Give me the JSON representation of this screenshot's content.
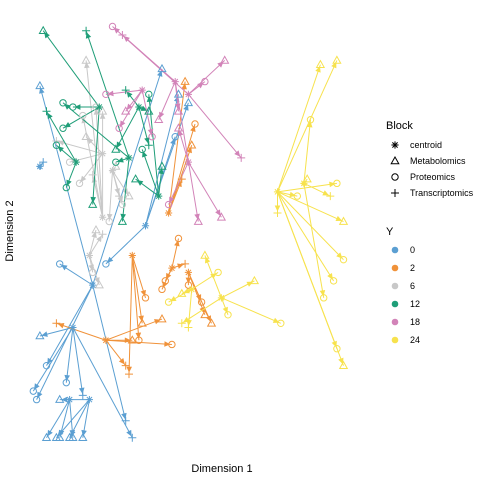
{
  "chart_data": {
    "type": "scatter",
    "xlabel": "Dimension 1",
    "ylabel": "Dimension 2",
    "xlim": [
      0,
      100
    ],
    "ylim": [
      0,
      100
    ],
    "grid": false,
    "legend_block": {
      "title": "Block",
      "entries": [
        {
          "label": "centroid",
          "shape": "asterisk"
        },
        {
          "label": "Metabolomics",
          "shape": "triangle"
        },
        {
          "label": "Proteomics",
          "shape": "circle"
        },
        {
          "label": "Transcriptomics",
          "shape": "plus"
        }
      ]
    },
    "legend_y": {
      "title": "Y",
      "entries": [
        {
          "label": "0",
          "color": "#5b9fd2"
        },
        {
          "label": "2",
          "color": "#f0923a"
        },
        {
          "label": "6",
          "color": "#c8c8c8"
        },
        {
          "label": "12",
          "color": "#1f9e78"
        },
        {
          "label": "18",
          "color": "#d283b8"
        },
        {
          "label": "24",
          "color": "#f7e24d"
        }
      ]
    },
    "series": [
      {
        "name": "0",
        "color": "#5b9fd2",
        "centroids": [
          {
            "c": [
              19,
              37
            ],
            "pts": [
              [
                3,
                84,
                "t"
              ],
              [
                9,
                42,
                "o"
              ],
              [
                40,
                88,
                "t"
              ],
              [
                5,
                18,
                "o"
              ],
              [
                29,
                5,
                "p"
              ],
              [
                2,
                10,
                "o"
              ]
            ]
          },
          {
            "c": [
              35,
              51
            ],
            "pts": [
              [
                44,
                72,
                "o"
              ],
              [
                45,
                82,
                "t"
              ],
              [
                23,
                42,
                "o"
              ],
              [
                48,
                80,
                "t"
              ]
            ]
          },
          {
            "c": [
              13,
              27
            ],
            "pts": [
              [
                1,
                12,
                "o"
              ],
              [
                3,
                25,
                "t"
              ],
              [
                16,
                11,
                "p"
              ],
              [
                11,
                14,
                "o"
              ],
              [
                31,
                1,
                "p"
              ]
            ]
          },
          {
            "c": [
              3,
              65
            ],
            "pts": [
              [
                4,
                66,
                "p"
              ]
            ]
          },
          {
            "c": [
              18,
              10
            ],
            "pts": [
              [
                9,
                10,
                "t"
              ],
              [
                8,
                1,
                "t"
              ],
              [
                12,
                1,
                "t"
              ],
              [
                16,
                1,
                "t"
              ]
            ]
          },
          {
            "c": [
              12,
              10
            ],
            "pts": [
              [
                5,
                1,
                "t"
              ],
              [
                9,
                1,
                "t"
              ],
              [
                13,
                1,
                "t"
              ]
            ]
          }
        ]
      },
      {
        "name": "2",
        "color": "#f0923a",
        "centroids": [
          {
            "c": [
              43,
              41
            ],
            "pts": [
              [
                41,
                38,
                "o"
              ],
              [
                47,
                42,
                "p"
              ],
              [
                45,
                48,
                "o"
              ],
              [
                40,
                36,
                "o"
              ]
            ]
          },
          {
            "c": [
              42,
              54
            ],
            "pts": [
              [
                49,
                70,
                "t"
              ],
              [
                46,
                62,
                "p"
              ],
              [
                47,
                85,
                "t"
              ],
              [
                50,
                75,
                "o"
              ]
            ]
          },
          {
            "c": [
              48,
              40
            ],
            "pts": [
              [
                55,
                28,
                "t"
              ],
              [
                53,
                30,
                "t"
              ],
              [
                48,
                37,
                "o"
              ],
              [
                52,
                33,
                "o"
              ]
            ]
          },
          {
            "c": [
              31,
              44
            ],
            "pts": [
              [
                34,
                28,
                "t"
              ],
              [
                33,
                24,
                "o"
              ],
              [
                30,
                16,
                "p"
              ],
              [
                35,
                34,
                "o"
              ]
            ]
          },
          {
            "c": [
              23,
              24
            ],
            "pts": [
              [
                8,
                28,
                "p"
              ],
              [
                31,
                24,
                "t"
              ],
              [
                29,
                18,
                "p"
              ],
              [
                43,
                23,
                "o"
              ],
              [
                40,
                29,
                "t"
              ]
            ]
          }
        ]
      },
      {
        "name": "6",
        "color": "#c8c8c8",
        "centroids": [
          {
            "c": [
              22,
              68
            ],
            "pts": [
              [
                8,
                71,
                "p"
              ],
              [
                17,
                72,
                "t"
              ],
              [
                15,
                61,
                "o"
              ],
              [
                12,
                66,
                "o"
              ]
            ]
          },
          {
            "c": [
              22,
              53
            ],
            "pts": [
              [
                17,
                90,
                "t"
              ],
              [
                16,
                77,
                "o"
              ],
              [
                20,
                79,
                "o"
              ],
              [
                22,
                78,
                "t"
              ],
              [
                19,
                63,
                "p"
              ]
            ]
          },
          {
            "c": [
              25,
              64
            ],
            "pts": [
              [
                27,
                58,
                "p"
              ],
              [
                30,
                58,
                "t"
              ],
              [
                28,
                56,
                "o"
              ],
              [
                24,
                52,
                "o"
              ],
              [
                26,
                65,
                "t"
              ]
            ]
          },
          {
            "c": [
              18,
              44
            ],
            "pts": [
              [
                20,
                50,
                "t"
              ],
              [
                22,
                49,
                "p"
              ],
              [
                19,
                40,
                "o"
              ],
              [
                21,
                37,
                "t"
              ]
            ]
          }
        ]
      },
      {
        "name": "12",
        "color": "#1f9e78",
        "centroids": [
          {
            "c": [
              21,
              79
            ],
            "pts": [
              [
                4,
                97,
                "t"
              ],
              [
                13,
                79,
                "o"
              ],
              [
                10,
                74,
                "o"
              ],
              [
                19,
                56,
                "t"
              ]
            ]
          },
          {
            "c": [
              30,
              67
            ],
            "pts": [
              [
                10,
                80,
                "o"
              ],
              [
                17,
                97,
                "p"
              ],
              [
                28,
                52,
                "t"
              ],
              [
                26,
                66,
                "o"
              ]
            ]
          },
          {
            "c": [
              33,
              79
            ],
            "pts": [
              [
                36,
                78,
                "t"
              ],
              [
                26,
                69,
                "t"
              ],
              [
                36,
                70,
                "p"
              ],
              [
                29,
                83,
                "p"
              ]
            ]
          },
          {
            "c": [
              39,
              58
            ],
            "pts": [
              [
                36,
                82,
                "o"
              ],
              [
                32,
                62,
                "t"
              ],
              [
                40,
                65,
                "t"
              ],
              [
                34,
                69,
                "o"
              ]
            ]
          },
          {
            "c": [
              14,
              66
            ],
            "pts": [
              [
                5,
                78,
                "p"
              ],
              [
                8,
                70,
                "o"
              ],
              [
                11,
                60,
                "o"
              ]
            ]
          }
        ]
      },
      {
        "name": "18",
        "color": "#d283b8",
        "centroids": [
          {
            "c": [
              48,
              82
            ],
            "pts": [
              [
                59,
                90,
                "t"
              ],
              [
                25,
                98,
                "o"
              ],
              [
                53,
                85,
                "o"
              ],
              [
                64,
                67,
                "p"
              ]
            ]
          },
          {
            "c": [
              44,
              85
            ],
            "pts": [
              [
                28,
                96,
                "p"
              ],
              [
                39,
                76,
                "t"
              ],
              [
                51,
                52,
                "t"
              ],
              [
                45,
                78,
                "t"
              ]
            ]
          },
          {
            "c": [
              34,
              83
            ],
            "pts": [
              [
                23,
                82,
                "o"
              ],
              [
                29,
                78,
                "t"
              ],
              [
                37,
                72,
                "o"
              ],
              [
                27,
                74,
                "o"
              ]
            ]
          },
          {
            "c": [
              48,
              66
            ],
            "pts": [
              [
                58,
                53,
                "t"
              ],
              [
                45,
                74,
                "t"
              ],
              [
                42,
                56,
                "o"
              ]
            ]
          }
        ]
      },
      {
        "name": "24",
        "color": "#f7e24d",
        "centroids": [
          {
            "c": [
              58,
              34
            ],
            "pts": [
              [
                53,
                44,
                "t"
              ],
              [
                60,
                30,
                "o"
              ],
              [
                68,
                38,
                "t"
              ],
              [
                46,
                28,
                "p"
              ],
              [
                76,
                28,
                "o"
              ]
            ]
          },
          {
            "c": [
              49,
              36
            ],
            "pts": [
              [
                42,
                33,
                "o"
              ],
              [
                48,
                27,
                "p"
              ],
              [
                57,
                40,
                "o"
              ],
              [
                46,
                35,
                "t"
              ]
            ]
          },
          {
            "c": [
              75,
              59
            ],
            "pts": [
              [
                88,
                89,
                "t"
              ],
              [
                93,
                90,
                "t"
              ],
              [
                93,
                61,
                "o"
              ],
              [
                95,
                52,
                "t"
              ],
              [
                81,
                58,
                "o"
              ],
              [
                75,
                54,
                "p"
              ],
              [
                95,
                43,
                "o"
              ],
              [
                92,
                38,
                "o"
              ],
              [
                95,
                18,
                "t"
              ],
              [
                93,
                22,
                "o"
              ]
            ]
          },
          {
            "c": [
              83,
              61
            ],
            "pts": [
              [
                85,
                76,
                "o"
              ],
              [
                84,
                62,
                "t"
              ],
              [
                91,
                58,
                "p"
              ],
              [
                89,
                34,
                "o"
              ]
            ]
          }
        ]
      }
    ]
  }
}
